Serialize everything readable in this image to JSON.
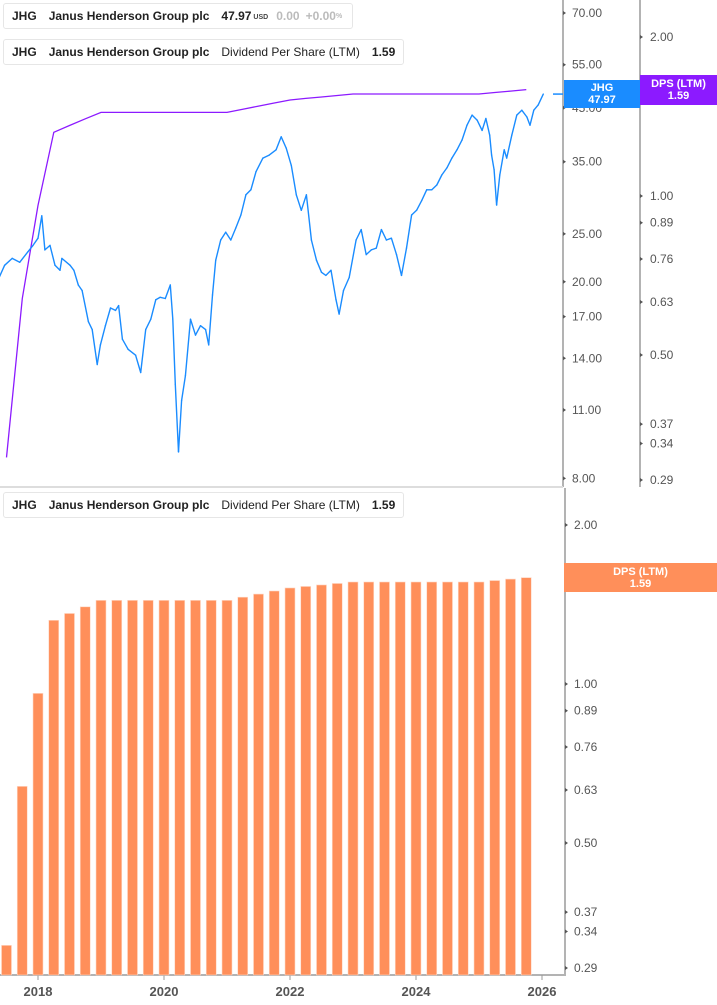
{
  "colors": {
    "price": "#1a8cff",
    "dps_line": "#8c1aff",
    "dps_bar": "#ff8f5a",
    "axis": "#b3b3b3"
  },
  "legends": {
    "price": {
      "ticker": "JHG",
      "name": "Janus Henderson Group plc",
      "value": "47.97",
      "unit": "USD",
      "change": "0.00",
      "change_pct": "+0.00",
      "pct_sign": "%"
    },
    "dps_top": {
      "ticker": "JHG",
      "name": "Janus Henderson Group plc",
      "metric": "Dividend Per Share (LTM)",
      "value": "1.59"
    },
    "dps_bottom": {
      "ticker": "JHG",
      "name": "Janus Henderson Group plc",
      "metric": "Dividend Per Share (LTM)",
      "value": "1.59"
    }
  },
  "tags": {
    "price": {
      "label": "JHG",
      "value": "47.97"
    },
    "dps_top": {
      "label": "DPS (LTM)",
      "value": "1.59"
    },
    "dps_bottom": {
      "label": "DPS (LTM)",
      "value": "1.59"
    }
  },
  "chart_data": [
    {
      "type": "line",
      "panel": "top",
      "scale": "log",
      "series": [
        {
          "name": "JHG",
          "axis": "price",
          "points": [
            [
              2017.39,
              20.5
            ],
            [
              2017.47,
              21.6
            ],
            [
              2017.59,
              22.3
            ],
            [
              2017.71,
              21.9
            ],
            [
              2017.84,
              23.0
            ],
            [
              2017.92,
              23.7
            ],
            [
              2018.0,
              24.5
            ],
            [
              2018.06,
              27.2
            ],
            [
              2018.11,
              23.2
            ],
            [
              2018.19,
              23.7
            ],
            [
              2018.27,
              21.6
            ],
            [
              2018.35,
              21.1
            ],
            [
              2018.38,
              22.3
            ],
            [
              2018.51,
              21.6
            ],
            [
              2018.57,
              21.1
            ],
            [
              2018.64,
              19.7
            ],
            [
              2018.7,
              19.2
            ],
            [
              2018.8,
              16.6
            ],
            [
              2018.86,
              16.0
            ],
            [
              2018.94,
              13.6
            ],
            [
              2018.99,
              14.9
            ],
            [
              2019.07,
              16.3
            ],
            [
              2019.15,
              17.7
            ],
            [
              2019.23,
              17.5
            ],
            [
              2019.28,
              17.9
            ],
            [
              2019.34,
              15.3
            ],
            [
              2019.43,
              14.6
            ],
            [
              2019.55,
              14.2
            ],
            [
              2019.63,
              13.1
            ],
            [
              2019.71,
              16.0
            ],
            [
              2019.79,
              16.8
            ],
            [
              2019.87,
              18.4
            ],
            [
              2019.94,
              18.6
            ],
            [
              2020.02,
              18.5
            ],
            [
              2020.1,
              19.7
            ],
            [
              2020.14,
              16.8
            ],
            [
              2020.18,
              12.4
            ],
            [
              2020.23,
              9.05
            ],
            [
              2020.28,
              11.5
            ],
            [
              2020.34,
              12.9
            ],
            [
              2020.42,
              16.8
            ],
            [
              2020.5,
              15.6
            ],
            [
              2020.58,
              16.3
            ],
            [
              2020.66,
              16.0
            ],
            [
              2020.71,
              14.9
            ],
            [
              2020.77,
              18.8
            ],
            [
              2020.82,
              22.1
            ],
            [
              2020.9,
              24.3
            ],
            [
              2020.98,
              25.2
            ],
            [
              2021.06,
              24.3
            ],
            [
              2021.14,
              25.7
            ],
            [
              2021.22,
              27.3
            ],
            [
              2021.3,
              30.0
            ],
            [
              2021.38,
              30.7
            ],
            [
              2021.46,
              33.4
            ],
            [
              2021.57,
              35.6
            ],
            [
              2021.67,
              36.1
            ],
            [
              2021.78,
              37.0
            ],
            [
              2021.86,
              39.3
            ],
            [
              2021.94,
              37.3
            ],
            [
              2022.02,
              34.4
            ],
            [
              2022.1,
              30.0
            ],
            [
              2022.18,
              27.9
            ],
            [
              2022.26,
              30.0
            ],
            [
              2022.34,
              24.3
            ],
            [
              2022.42,
              22.1
            ],
            [
              2022.5,
              20.9
            ],
            [
              2022.57,
              20.6
            ],
            [
              2022.65,
              21.1
            ],
            [
              2022.73,
              18.4
            ],
            [
              2022.78,
              17.2
            ],
            [
              2022.85,
              19.2
            ],
            [
              2022.94,
              20.4
            ],
            [
              2023.05,
              24.3
            ],
            [
              2023.13,
              25.5
            ],
            [
              2023.21,
              22.7
            ],
            [
              2023.29,
              23.2
            ],
            [
              2023.37,
              23.4
            ],
            [
              2023.45,
              25.5
            ],
            [
              2023.53,
              24.3
            ],
            [
              2023.61,
              24.5
            ],
            [
              2023.69,
              22.7
            ],
            [
              2023.77,
              20.6
            ],
            [
              2023.85,
              23.4
            ],
            [
              2023.93,
              27.3
            ],
            [
              2024.01,
              27.9
            ],
            [
              2024.09,
              29.2
            ],
            [
              2024.17,
              30.7
            ],
            [
              2024.25,
              30.7
            ],
            [
              2024.33,
              31.4
            ],
            [
              2024.41,
              32.9
            ],
            [
              2024.49,
              34.0
            ],
            [
              2024.57,
              35.6
            ],
            [
              2024.65,
              37.0
            ],
            [
              2024.73,
              38.7
            ],
            [
              2024.81,
              41.5
            ],
            [
              2024.89,
              43.5
            ],
            [
              2024.97,
              42.5
            ],
            [
              2025.05,
              40.5
            ],
            [
              2025.11,
              42.8
            ],
            [
              2025.17,
              39.6
            ],
            [
              2025.2,
              36.1
            ],
            [
              2025.24,
              33.7
            ],
            [
              2025.28,
              28.6
            ],
            [
              2025.33,
              32.9
            ],
            [
              2025.4,
              37.0
            ],
            [
              2025.44,
              35.6
            ],
            [
              2025.52,
              39.6
            ],
            [
              2025.6,
              43.5
            ],
            [
              2025.68,
              44.5
            ],
            [
              2025.76,
              43.1
            ],
            [
              2025.81,
              41.5
            ],
            [
              2025.87,
              44.5
            ],
            [
              2025.94,
              45.6
            ],
            [
              2026.02,
              47.97
            ]
          ]
        },
        {
          "name": "DPS (LTM)",
          "axis": "dps",
          "points": [
            [
              2017.5,
              0.32
            ],
            [
              2017.75,
              0.64
            ],
            [
              2018.0,
              0.96
            ],
            [
              2018.25,
              1.32
            ],
            [
              2018.5,
              1.36
            ],
            [
              2018.75,
              1.4
            ],
            [
              2019.0,
              1.44
            ],
            [
              2019.25,
              1.44
            ],
            [
              2019.5,
              1.44
            ],
            [
              2019.75,
              1.44
            ],
            [
              2020.0,
              1.44
            ],
            [
              2020.25,
              1.44
            ],
            [
              2020.5,
              1.44
            ],
            [
              2020.75,
              1.44
            ],
            [
              2021.0,
              1.44
            ],
            [
              2021.25,
              1.46
            ],
            [
              2021.5,
              1.48
            ],
            [
              2021.75,
              1.5
            ],
            [
              2022.0,
              1.52
            ],
            [
              2022.25,
              1.53
            ],
            [
              2022.5,
              1.54
            ],
            [
              2022.75,
              1.55
            ],
            [
              2023.0,
              1.56
            ],
            [
              2023.25,
              1.56
            ],
            [
              2023.5,
              1.56
            ],
            [
              2023.75,
              1.56
            ],
            [
              2024.0,
              1.56
            ],
            [
              2024.25,
              1.56
            ],
            [
              2024.5,
              1.56
            ],
            [
              2024.75,
              1.56
            ],
            [
              2025.0,
              1.56
            ],
            [
              2025.25,
              1.57
            ],
            [
              2025.5,
              1.58
            ],
            [
              2025.75,
              1.59
            ]
          ]
        }
      ],
      "price_axis_ticks": [
        "70.00",
        "55.00",
        "45.00",
        "35.00",
        "25.00",
        "20.00",
        "17.00",
        "14.00",
        "11.00",
        "8.00"
      ],
      "dps_axis_ticks": [
        "2.00",
        "1.00",
        "0.89",
        "0.76",
        "0.63",
        "0.50",
        "0.37",
        "0.34",
        "0.29"
      ],
      "ylim_price": [
        7.8,
        72
      ],
      "ylim_dps": [
        0.28,
        2.2
      ]
    },
    {
      "type": "bar",
      "panel": "bottom",
      "scale": "log",
      "x": [
        2017.5,
        2017.75,
        2018.0,
        2018.25,
        2018.5,
        2018.75,
        2019.0,
        2019.25,
        2019.5,
        2019.75,
        2020.0,
        2020.25,
        2020.5,
        2020.75,
        2021.0,
        2021.25,
        2021.5,
        2021.75,
        2022.0,
        2022.25,
        2022.5,
        2022.75,
        2023.0,
        2023.25,
        2023.5,
        2023.75,
        2024.0,
        2024.25,
        2024.5,
        2024.75,
        2025.0,
        2025.25,
        2025.5,
        2025.75
      ],
      "values": [
        0.32,
        0.64,
        0.96,
        1.32,
        1.36,
        1.4,
        1.44,
        1.44,
        1.44,
        1.44,
        1.44,
        1.44,
        1.44,
        1.44,
        1.44,
        1.46,
        1.48,
        1.5,
        1.52,
        1.53,
        1.54,
        1.55,
        1.56,
        1.56,
        1.56,
        1.56,
        1.56,
        1.56,
        1.56,
        1.56,
        1.56,
        1.57,
        1.58,
        1.59
      ],
      "y_ticks": [
        "2.00",
        "1.00",
        "0.89",
        "0.76",
        "0.63",
        "0.50",
        "0.37",
        "0.34",
        "0.29"
      ],
      "x_ticks": [
        "2018",
        "2020",
        "2022",
        "2024",
        "2026"
      ],
      "ylim": [
        0.28,
        2.2
      ],
      "grid": false,
      "legend": "top-left"
    }
  ]
}
